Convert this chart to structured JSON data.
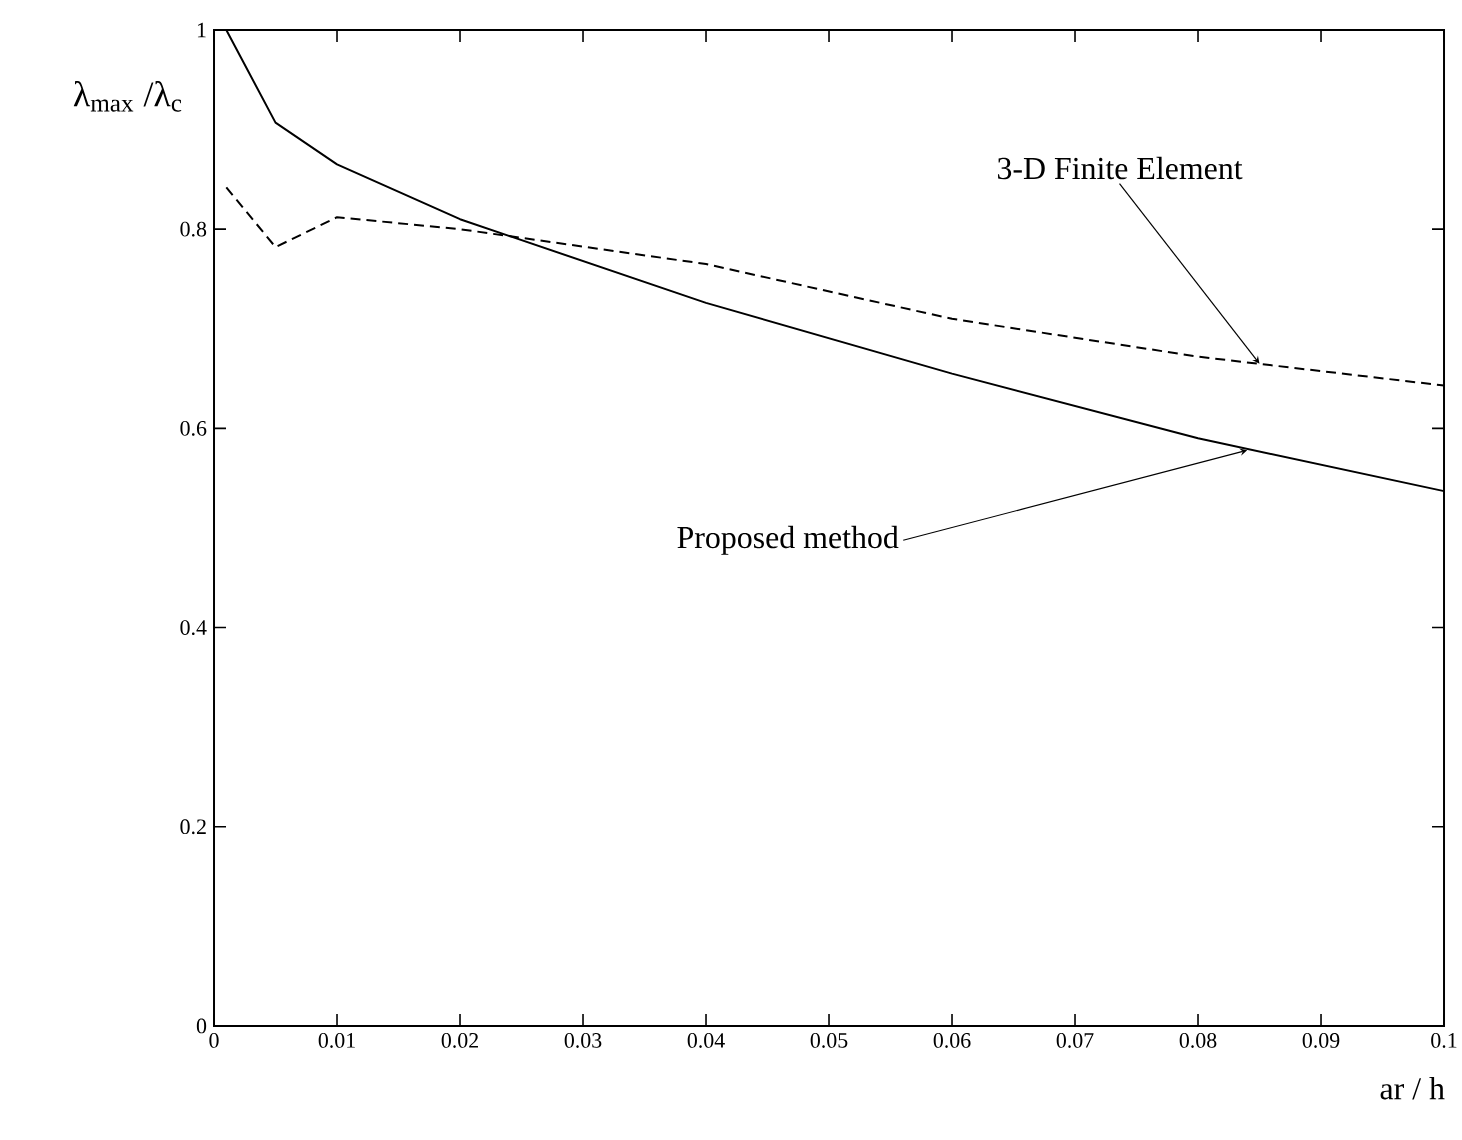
{
  "chart_data": {
    "type": "line",
    "xlabel": "ar / h",
    "ylabel": "λ$_{max}$ /λ$_{c}$",
    "xlim": [
      0,
      0.1
    ],
    "ylim": [
      0,
      1
    ],
    "xticks": [
      0,
      0.01,
      0.02,
      0.03,
      0.04,
      0.05,
      0.06,
      0.07,
      0.08,
      0.09,
      0.1
    ],
    "yticks": [
      0,
      0.2,
      0.4,
      0.6,
      0.8,
      1
    ],
    "series": [
      {
        "color": "#000000",
        "line_style": "solid",
        "x": [
          0.001,
          0.005,
          0.01,
          0.02,
          0.04,
          0.06,
          0.08,
          0.1
        ],
        "values": [
          1.0,
          0.907,
          0.865,
          0.81,
          0.726,
          0.655,
          0.59,
          0.537
        ]
      },
      {
        "color": "#000000",
        "line_style": "dashed",
        "x": [
          0.001,
          0.005,
          0.01,
          0.02,
          0.04,
          0.06,
          0.08,
          0.1
        ],
        "values": [
          0.842,
          0.782,
          0.812,
          0.8,
          0.765,
          0.71,
          0.672,
          0.643
        ]
      }
    ],
    "annotations": [
      {
        "text": "3-D Finite Element",
        "x": 0.085,
        "y": 0.665
      },
      {
        "text": "Proposed method",
        "x": 0.084,
        "y": 0.578
      }
    ]
  }
}
